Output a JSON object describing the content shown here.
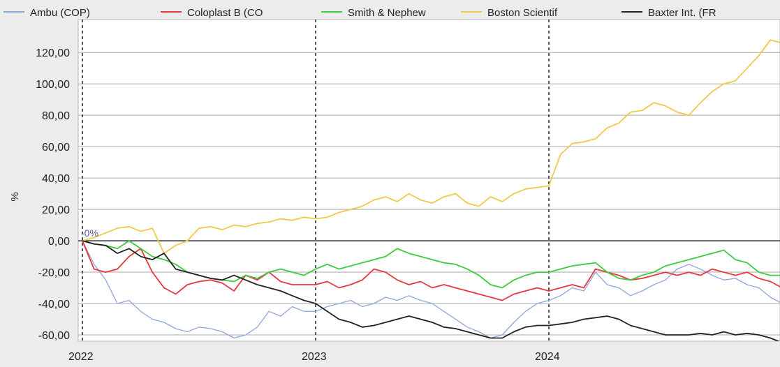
{
  "chart_data": {
    "type": "line",
    "title": "",
    "xlabel": "",
    "ylabel": "%",
    "ylim": [
      -64,
      141
    ],
    "yticks": [
      -60,
      -40,
      -20,
      0,
      20,
      40,
      60,
      80,
      100,
      120
    ],
    "ytick_labels": [
      "-60,00",
      "-40,00",
      "-20,00",
      "0,00",
      "20,00",
      "40,00",
      "60,00",
      "80,00",
      "100,00",
      "120,00"
    ],
    "xlim": [
      2022.0,
      2025.0
    ],
    "xticks": [
      2022,
      2023,
      2024
    ],
    "xtick_labels": [
      "2022",
      "2023",
      "2024"
    ],
    "x_start": 2022.0,
    "x_step": 0.05,
    "baseline_label": "-0%",
    "grid": true,
    "legend_position": "top",
    "series": [
      {
        "name": "Ambu (COP)",
        "color": "#8ea6dc",
        "values": [
          0,
          -15,
          -25,
          -40,
          -38,
          -45,
          -50,
          -52,
          -56,
          -58,
          -55,
          -56,
          -58,
          -62,
          -60,
          -55,
          -45,
          -48,
          -42,
          -45,
          -45,
          -42,
          -40,
          -38,
          -42,
          -40,
          -36,
          -38,
          -35,
          -38,
          -40,
          -45,
          -50,
          -55,
          -58,
          -62,
          -60,
          -52,
          -45,
          -40,
          -38,
          -35,
          -30,
          -32,
          -20,
          -28,
          -30,
          -35,
          -32,
          -28,
          -25,
          -18,
          -15,
          -18,
          -22,
          -25,
          -24,
          -28,
          -30,
          -36,
          -40
        ]
      },
      {
        "name": "Coloplast B (CO",
        "color": "#e8373f",
        "values": [
          0,
          -18,
          -20,
          -18,
          -10,
          -5,
          -20,
          -30,
          -34,
          -28,
          -26,
          -25,
          -27,
          -32,
          -22,
          -25,
          -20,
          -26,
          -28,
          -28,
          -28,
          -26,
          -30,
          -28,
          -25,
          -18,
          -20,
          -25,
          -28,
          -26,
          -30,
          -28,
          -30,
          -32,
          -34,
          -36,
          -38,
          -34,
          -32,
          -30,
          -32,
          -30,
          -28,
          -30,
          -18,
          -20,
          -22,
          -25,
          -24,
          -22,
          -20,
          -22,
          -20,
          -22,
          -18,
          -20,
          -22,
          -20,
          -24,
          -26,
          -30
        ]
      },
      {
        "name": "Smith & Nephew",
        "color": "#3ccc3c",
        "values": [
          0,
          -2,
          -3,
          -5,
          0,
          -5,
          -10,
          -12,
          -15,
          -20,
          -22,
          -24,
          -25,
          -26,
          -22,
          -24,
          -20,
          -18,
          -20,
          -22,
          -18,
          -15,
          -18,
          -16,
          -14,
          -12,
          -10,
          -5,
          -8,
          -10,
          -12,
          -14,
          -15,
          -18,
          -22,
          -28,
          -30,
          -25,
          -22,
          -20,
          -20,
          -18,
          -16,
          -15,
          -14,
          -20,
          -24,
          -25,
          -22,
          -20,
          -16,
          -14,
          -12,
          -10,
          -8,
          -6,
          -12,
          -14,
          -20,
          -22,
          -22
        ]
      },
      {
        "name": "Boston Scientif",
        "color": "#f2c84b",
        "values": [
          0,
          2,
          5,
          8,
          9,
          6,
          8,
          -8,
          -3,
          0,
          8,
          9,
          7,
          10,
          9,
          11,
          12,
          14,
          13,
          15,
          14,
          15,
          18,
          20,
          22,
          26,
          28,
          25,
          30,
          26,
          24,
          28,
          30,
          24,
          22,
          28,
          25,
          30,
          33,
          34,
          35,
          55,
          62,
          63,
          65,
          72,
          75,
          82,
          83,
          88,
          86,
          82,
          80,
          88,
          95,
          100,
          102,
          110,
          118,
          128,
          126
        ]
      },
      {
        "name": "Baxter Int. (FR",
        "color": "#222222",
        "values": [
          0,
          -2,
          -3,
          -8,
          -5,
          -10,
          -12,
          -8,
          -18,
          -20,
          -22,
          -24,
          -25,
          -22,
          -25,
          -28,
          -30,
          -32,
          -35,
          -38,
          -40,
          -45,
          -50,
          -52,
          -55,
          -54,
          -52,
          -50,
          -48,
          -50,
          -52,
          -55,
          -56,
          -58,
          -60,
          -62,
          -62,
          -58,
          -55,
          -54,
          -54,
          -53,
          -52,
          -50,
          -49,
          -48,
          -50,
          -54,
          -56,
          -58,
          -60,
          -60,
          -60,
          -59,
          -60,
          -58,
          -60,
          -59,
          -60,
          -62,
          -65
        ]
      }
    ]
  }
}
